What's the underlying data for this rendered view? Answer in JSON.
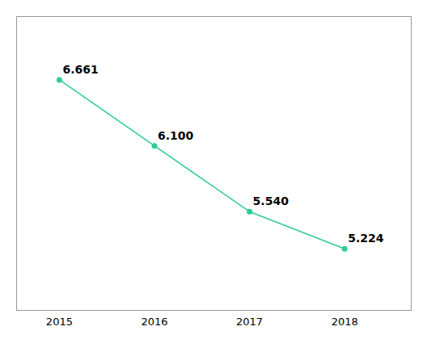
{
  "chart_data": {
    "type": "line",
    "x": [
      2015,
      2016,
      2017,
      2018
    ],
    "values": [
      6.661,
      6.1,
      5.54,
      5.224
    ],
    "value_labels": [
      "6.661",
      "6.100",
      "5.540",
      "5.224"
    ],
    "color": "#2ecc9a",
    "marker": "circle",
    "xlim": [
      2014.55,
      2018.7
    ],
    "xticks": [
      2015,
      2016,
      2017,
      2018
    ],
    "ylim": [
      4.7,
      7.2
    ],
    "data_labels": true,
    "tick_labels": "x",
    "grid": false
  }
}
